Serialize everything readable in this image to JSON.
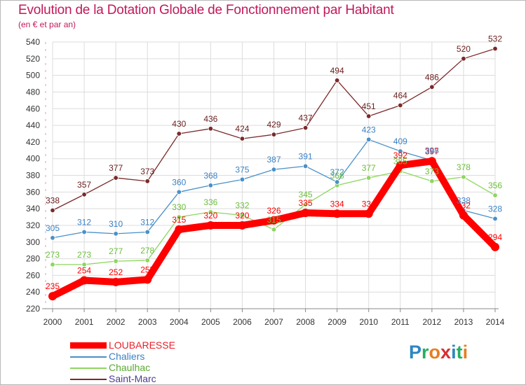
{
  "title": "Evolution de la Dotation Globale de Fonctionnement par Habitant",
  "subtitle": "(en € et par an)",
  "logo": {
    "text": "Proxiti",
    "letters": [
      {
        "ch": "P",
        "color": "#2e86c1"
      },
      {
        "ch": "r",
        "color": "#27ae60"
      },
      {
        "ch": "o",
        "color": "#e67e22"
      },
      {
        "ch": "x",
        "color": "#d63031"
      },
      {
        "ch": "i",
        "color": "#2e86c1"
      },
      {
        "ch": "t",
        "color": "#27ae60"
      },
      {
        "ch": "i",
        "color": "#e67e22"
      }
    ]
  },
  "chart_data": {
    "type": "line",
    "title": "Evolution de la Dotation Globale de Fonctionnement par Habitant",
    "ylabel": "(en € et par an)",
    "xlabel": "",
    "x": [
      "2000",
      "2001",
      "2002",
      "2003",
      "2004",
      "2005",
      "2006",
      "2007",
      "2008",
      "2009",
      "2010",
      "2011",
      "2012",
      "2013",
      "2014"
    ],
    "ylim": [
      220,
      540
    ],
    "yticks": [
      220,
      240,
      260,
      280,
      300,
      320,
      340,
      360,
      380,
      400,
      420,
      440,
      460,
      480,
      500,
      520,
      540
    ],
    "grid": true,
    "legend_position": "bottom-left",
    "series": [
      {
        "name": "LOUBARESSE",
        "color": "#ff0000",
        "text_color": "#ff0000",
        "values": [
          235,
          254,
          252,
          255,
          315,
          320,
          320,
          326,
          335,
          334,
          334,
          392,
          397,
          332,
          294
        ]
      },
      {
        "name": "Chaliers",
        "color": "#4a90c8",
        "text_color": "#3b82c4",
        "values": [
          305,
          312,
          310,
          312,
          360,
          368,
          375,
          387,
          391,
          372,
          423,
          409,
          398,
          338,
          328
        ]
      },
      {
        "name": "Chaulhac",
        "color": "#8ed660",
        "text_color": "#6abf3a",
        "values": [
          273,
          273,
          277,
          278,
          330,
          336,
          332,
          315,
          345,
          368,
          377,
          385,
          373,
          378,
          356
        ]
      },
      {
        "name": "Saint-Marc",
        "color": "#7b2a2a",
        "text_color": "#6b1e1e",
        "values": [
          338,
          357,
          377,
          373,
          430,
          436,
          424,
          429,
          437,
          494,
          451,
          464,
          486,
          520,
          532
        ]
      }
    ]
  }
}
